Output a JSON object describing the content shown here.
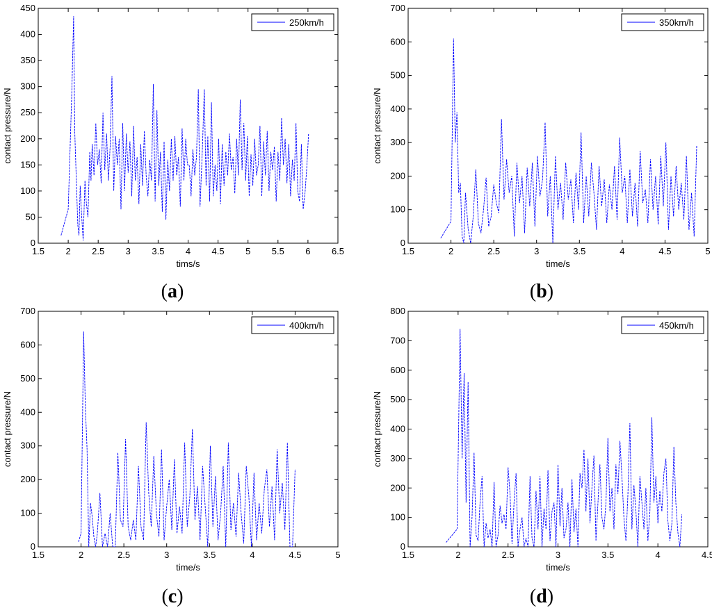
{
  "chart_data": [
    {
      "type": "line",
      "panel_label": "a",
      "xlabel": "tims/s",
      "ylabel": "contact pressure/N",
      "xlim": [
        1.5,
        6.5
      ],
      "ylim": [
        0,
        450
      ],
      "xticks": [
        "1.5",
        "2",
        "2.5",
        "3",
        "3.5",
        "4",
        "4.5",
        "5",
        "5.5",
        "6",
        "6.5"
      ],
      "yticks": [
        "0",
        "50",
        "100",
        "150",
        "200",
        "250",
        "300",
        "350",
        "400",
        "450"
      ],
      "grid": false,
      "legend_position": "top-right",
      "line_color": "#0000ff",
      "series": [
        {
          "name": "250km/h",
          "x": [
            1.88,
            2.0,
            2.06,
            2.09,
            2.11,
            2.13,
            2.16,
            2.18,
            2.2,
            2.22,
            2.25,
            2.28,
            2.3,
            2.33,
            2.36,
            2.38,
            2.4,
            2.43,
            2.46,
            2.49,
            2.52,
            2.55,
            2.58,
            2.61,
            2.64,
            2.67,
            2.7,
            2.73,
            2.76,
            2.79,
            2.82,
            2.85,
            2.88,
            2.91,
            2.94,
            2.97,
            3.0,
            3.03,
            3.06,
            3.09,
            3.12,
            3.15,
            3.18,
            3.21,
            3.24,
            3.27,
            3.3,
            3.33,
            3.36,
            3.39,
            3.42,
            3.45,
            3.48,
            3.51,
            3.54,
            3.57,
            3.6,
            3.63,
            3.66,
            3.69,
            3.72,
            3.75,
            3.78,
            3.81,
            3.84,
            3.87,
            3.9,
            3.93,
            3.96,
            3.99,
            4.02,
            4.05,
            4.08,
            4.11,
            4.14,
            4.17,
            4.2,
            4.24,
            4.27,
            4.3,
            4.33,
            4.36,
            4.39,
            4.42,
            4.45,
            4.48,
            4.51,
            4.54,
            4.57,
            4.6,
            4.63,
            4.66,
            4.69,
            4.72,
            4.75,
            4.78,
            4.81,
            4.84,
            4.87,
            4.9,
            4.93,
            4.96,
            4.99,
            5.02,
            5.05,
            5.08,
            5.11,
            5.14,
            5.17,
            5.2,
            5.23,
            5.26,
            5.29,
            5.32,
            5.35,
            5.38,
            5.41,
            5.44,
            5.47,
            5.5,
            5.53,
            5.56,
            5.59,
            5.62,
            5.65,
            5.68,
            5.71,
            5.74,
            5.77,
            5.8,
            5.83,
            5.86,
            5.89,
            5.92,
            5.95,
            5.98,
            6.01
          ],
          "values": [
            15,
            65,
            290,
            435,
            210,
            140,
            35,
            15,
            110,
            60,
            5,
            120,
            80,
            50,
            175,
            120,
            190,
            130,
            230,
            150,
            180,
            115,
            250,
            140,
            210,
            120,
            185,
            320,
            100,
            205,
            150,
            200,
            65,
            230,
            100,
            210,
            135,
            195,
            90,
            225,
            120,
            165,
            75,
            190,
            110,
            215,
            130,
            90,
            160,
            120,
            305,
            80,
            255,
            110,
            175,
            60,
            195,
            45,
            160,
            100,
            200,
            120,
            205,
            130,
            165,
            70,
            220,
            120,
            200,
            150,
            150,
            90,
            180,
            130,
            165,
            295,
            70,
            185,
            295,
            110,
            205,
            80,
            270,
            90,
            150,
            100,
            200,
            75,
            190,
            110,
            175,
            130,
            210,
            140,
            165,
            95,
            200,
            130,
            275,
            140,
            230,
            120,
            205,
            90,
            170,
            110,
            200,
            130,
            150,
            225,
            90,
            195,
            130,
            215,
            100,
            175,
            140,
            185,
            80,
            175,
            120,
            240,
            150,
            200,
            115,
            190,
            90,
            160,
            120,
            230,
            100,
            80,
            190,
            65,
            95,
            145,
            210
          ]
        }
      ]
    },
    {
      "type": "line",
      "panel_label": "b",
      "xlabel": "time/s",
      "ylabel": "contact pressure/N",
      "xlim": [
        1.5,
        5
      ],
      "ylim": [
        0,
        700
      ],
      "xticks": [
        "1.5",
        "2",
        "2.5",
        "3",
        "3.5",
        "4",
        "4.5",
        "5"
      ],
      "yticks": [
        "0",
        "100",
        "200",
        "300",
        "400",
        "500",
        "600",
        "700"
      ],
      "grid": false,
      "legend_position": "top-right",
      "line_color": "#0000ff",
      "series": [
        {
          "name": "350km/h",
          "x": [
            1.88,
            2.0,
            2.03,
            2.05,
            2.07,
            2.09,
            2.11,
            2.13,
            2.15,
            2.17,
            2.2,
            2.23,
            2.26,
            2.29,
            2.32,
            2.35,
            2.38,
            2.41,
            2.44,
            2.47,
            2.5,
            2.53,
            2.56,
            2.59,
            2.62,
            2.65,
            2.68,
            2.71,
            2.74,
            2.77,
            2.8,
            2.83,
            2.86,
            2.89,
            2.92,
            2.95,
            2.98,
            3.01,
            3.04,
            3.07,
            3.1,
            3.13,
            3.16,
            3.19,
            3.22,
            3.25,
            3.28,
            3.31,
            3.34,
            3.37,
            3.4,
            3.43,
            3.46,
            3.49,
            3.52,
            3.55,
            3.58,
            3.61,
            3.64,
            3.67,
            3.7,
            3.73,
            3.76,
            3.79,
            3.82,
            3.85,
            3.88,
            3.91,
            3.94,
            3.97,
            4.0,
            4.03,
            4.06,
            4.09,
            4.12,
            4.15,
            4.18,
            4.21,
            4.24,
            4.27,
            4.3,
            4.33,
            4.36,
            4.39,
            4.42,
            4.45,
            4.48,
            4.51,
            4.54,
            4.57,
            4.6,
            4.63,
            4.66,
            4.69,
            4.72,
            4.75,
            4.78,
            4.81,
            4.84,
            4.87
          ],
          "values": [
            15,
            65,
            610,
            300,
            390,
            150,
            180,
            20,
            0,
            150,
            45,
            0,
            80,
            220,
            60,
            30,
            100,
            195,
            50,
            80,
            175,
            120,
            90,
            370,
            130,
            250,
            150,
            200,
            20,
            240,
            120,
            200,
            30,
            225,
            110,
            240,
            50,
            260,
            140,
            190,
            360,
            80,
            200,
            0,
            260,
            100,
            180,
            70,
            240,
            130,
            190,
            60,
            210,
            100,
            330,
            60,
            200,
            80,
            240,
            150,
            40,
            230,
            110,
            190,
            60,
            175,
            100,
            230,
            70,
            315,
            150,
            200,
            60,
            220,
            80,
            180,
            50,
            275,
            120,
            160,
            60,
            250,
            100,
            200,
            55,
            260,
            110,
            300,
            40,
            200,
            80,
            230,
            100,
            180,
            70,
            260,
            40,
            150,
            20,
            290
          ]
        }
      ]
    },
    {
      "type": "line",
      "panel_label": "c",
      "xlabel": "time/s",
      "ylabel": "contact pressure/N",
      "xlim": [
        1.5,
        5
      ],
      "ylim": [
        0,
        700
      ],
      "xticks": [
        "1.5",
        "2",
        "2.5",
        "3",
        "3.5",
        "4",
        "4.5",
        "5"
      ],
      "yticks": [
        "0",
        "100",
        "200",
        "300",
        "400",
        "500",
        "600",
        "700"
      ],
      "grid": false,
      "legend_position": "top-right",
      "line_color": "#0000ff",
      "series": [
        {
          "name": "400km/h",
          "x": [
            1.97,
            2.0,
            2.03,
            2.05,
            2.07,
            2.09,
            2.11,
            2.13,
            2.15,
            2.17,
            2.19,
            2.22,
            2.25,
            2.28,
            2.31,
            2.34,
            2.37,
            2.4,
            2.43,
            2.46,
            2.49,
            2.52,
            2.55,
            2.58,
            2.61,
            2.64,
            2.67,
            2.7,
            2.73,
            2.76,
            2.79,
            2.82,
            2.85,
            2.88,
            2.91,
            2.94,
            2.97,
            3.0,
            3.03,
            3.06,
            3.09,
            3.12,
            3.15,
            3.18,
            3.21,
            3.24,
            3.27,
            3.3,
            3.33,
            3.36,
            3.39,
            3.42,
            3.45,
            3.48,
            3.51,
            3.54,
            3.57,
            3.6,
            3.63,
            3.66,
            3.69,
            3.72,
            3.75,
            3.78,
            3.81,
            3.84,
            3.87,
            3.9,
            3.93,
            3.96,
            3.99,
            4.02,
            4.05,
            4.08,
            4.11,
            4.14,
            4.17,
            4.2,
            4.23,
            4.26,
            4.29,
            4.32,
            4.35,
            4.38,
            4.41,
            4.44,
            4.47,
            4.5
          ],
          "values": [
            15,
            40,
            640,
            420,
            290,
            0,
            130,
            90,
            30,
            0,
            40,
            160,
            0,
            40,
            0,
            100,
            0,
            0,
            280,
            80,
            60,
            320,
            60,
            20,
            80,
            20,
            240,
            60,
            20,
            370,
            160,
            60,
            270,
            100,
            30,
            290,
            20,
            120,
            200,
            50,
            260,
            40,
            120,
            40,
            310,
            60,
            150,
            350,
            80,
            180,
            20,
            240,
            120,
            0,
            300,
            60,
            210,
            20,
            100,
            240,
            0,
            310,
            50,
            130,
            30,
            220,
            100,
            10,
            240,
            150,
            0,
            220,
            20,
            130,
            40,
            170,
            230,
            60,
            180,
            20,
            290,
            100,
            190,
            50,
            310,
            0,
            0,
            230
          ]
        }
      ]
    },
    {
      "type": "line",
      "panel_label": "d",
      "xlabel": "time/s",
      "ylabel": "contact pressure/N",
      "xlim": [
        1.5,
        4.5
      ],
      "ylim": [
        0,
        800
      ],
      "xticks": [
        "1.5",
        "2",
        "2.5",
        "3",
        "3.5",
        "4",
        "4.5"
      ],
      "yticks": [
        "0",
        "100",
        "200",
        "300",
        "400",
        "500",
        "600",
        "700",
        "800"
      ],
      "grid": false,
      "legend_position": "top-right",
      "line_color": "#0000ff",
      "series": [
        {
          "name": "450km/h",
          "x": [
            1.88,
            1.99,
            2.02,
            2.04,
            2.06,
            2.08,
            2.1,
            2.12,
            2.14,
            2.16,
            2.18,
            2.2,
            2.22,
            2.24,
            2.26,
            2.28,
            2.3,
            2.32,
            2.34,
            2.36,
            2.38,
            2.4,
            2.42,
            2.44,
            2.46,
            2.48,
            2.5,
            2.52,
            2.54,
            2.56,
            2.58,
            2.6,
            2.62,
            2.64,
            2.66,
            2.68,
            2.7,
            2.72,
            2.74,
            2.76,
            2.78,
            2.8,
            2.82,
            2.84,
            2.86,
            2.88,
            2.9,
            2.92,
            2.94,
            2.96,
            2.98,
            3.0,
            3.02,
            3.04,
            3.06,
            3.08,
            3.1,
            3.12,
            3.14,
            3.16,
            3.18,
            3.2,
            3.22,
            3.24,
            3.26,
            3.28,
            3.3,
            3.32,
            3.34,
            3.36,
            3.38,
            3.4,
            3.42,
            3.44,
            3.46,
            3.48,
            3.5,
            3.52,
            3.54,
            3.56,
            3.58,
            3.6,
            3.62,
            3.64,
            3.66,
            3.68,
            3.7,
            3.72,
            3.74,
            3.76,
            3.78,
            3.8,
            3.82,
            3.84,
            3.86,
            3.88,
            3.9,
            3.92,
            3.94,
            3.96,
            3.98,
            4.0,
            4.02,
            4.04,
            4.06,
            4.08,
            4.1,
            4.12,
            4.14,
            4.16,
            4.18,
            4.2,
            4.22,
            4.24
          ],
          "values": [
            15,
            60,
            740,
            300,
            590,
            150,
            560,
            0,
            100,
            320,
            40,
            20,
            150,
            240,
            0,
            80,
            30,
            60,
            0,
            220,
            0,
            40,
            140,
            80,
            110,
            60,
            270,
            180,
            10,
            150,
            250,
            0,
            60,
            100,
            0,
            30,
            0,
            240,
            30,
            0,
            190,
            60,
            240,
            0,
            130,
            60,
            260,
            20,
            120,
            150,
            0,
            280,
            70,
            200,
            30,
            60,
            150,
            0,
            230,
            50,
            130,
            0,
            250,
            200,
            330,
            120,
            300,
            80,
            200,
            310,
            20,
            150,
            280,
            100,
            60,
            150,
            370,
            120,
            200,
            60,
            280,
            180,
            360,
            240,
            100,
            20,
            180,
            420,
            60,
            210,
            120,
            0,
            240,
            150,
            60,
            200,
            20,
            120,
            440,
            150,
            240,
            80,
            190,
            120,
            250,
            300,
            90,
            20,
            80,
            340,
            150,
            50,
            0,
            110
          ]
        }
      ]
    }
  ]
}
